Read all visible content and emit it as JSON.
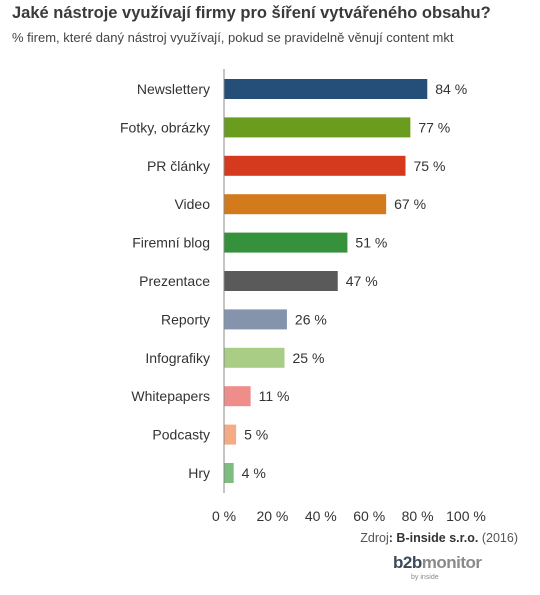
{
  "chart_data": {
    "type": "bar",
    "orientation": "horizontal",
    "title": "Jaké nástroje využívají firmy pro šíření vytvářeného obsahu?",
    "subtitle": "% firem, které daný nástroj využívají, pokud se pravidelně věnují content mkt",
    "categories": [
      "Newslettery",
      "Fotky, obrázky",
      "PR články",
      "Video",
      "Firemní blog",
      "Prezentace",
      "Reporty",
      "Infografiky",
      "Whitepapers",
      "Podcasty",
      "Hry"
    ],
    "values": [
      84,
      77,
      75,
      67,
      51,
      47,
      26,
      25,
      11,
      5,
      4
    ],
    "value_labels": [
      "84 %",
      "77 %",
      "75 %",
      "67 %",
      "51 %",
      "47 %",
      "26 %",
      "25 %",
      "11 %",
      "5 %",
      "4 %"
    ],
    "colors": [
      "#254e79",
      "#6a9c1f",
      "#d63a1e",
      "#d27a1c",
      "#35913b",
      "#5a5a5a",
      "#8593ad",
      "#a9cd84",
      "#ef8d8a",
      "#f6ab87",
      "#7ebd80"
    ],
    "xlim": [
      0,
      100
    ],
    "xticks": [
      0,
      20,
      40,
      60,
      80,
      100
    ],
    "xtick_labels": [
      "0 %",
      "20 %",
      "40 %",
      "60 %",
      "80 %",
      "100 %"
    ],
    "grid": false,
    "legend": "none"
  },
  "footer": {
    "source_prefix": "Zdroj",
    "source_name": ": B-inside s.r.o.",
    "source_year": " (2016)"
  },
  "logo": {
    "part1": "b2b",
    "part2": "monitor",
    "sub": "by inside"
  }
}
